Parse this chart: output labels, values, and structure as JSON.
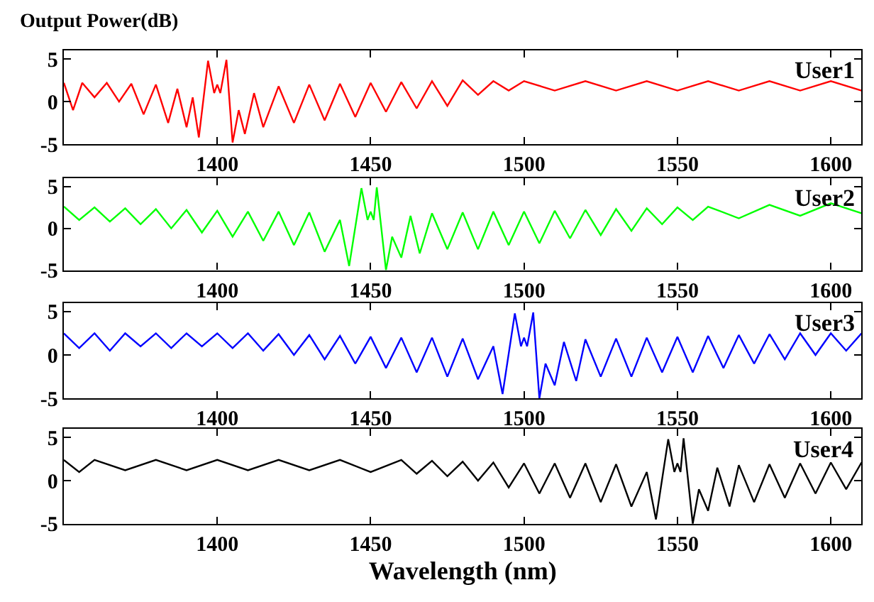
{
  "chart_data": [
    {
      "type": "line",
      "title": "Output Power(dB)",
      "annotations": [
        "User1"
      ],
      "xlim": [
        1350,
        1610
      ],
      "xticks": [
        1400,
        1450,
        1500,
        1550,
        1600
      ],
      "ylim": [
        -5,
        6
      ],
      "yticks": [
        -5,
        0,
        5
      ],
      "x": [
        1350,
        1353,
        1356,
        1360,
        1364,
        1368,
        1372,
        1376,
        1380,
        1384,
        1387,
        1390,
        1392,
        1394,
        1397,
        1399,
        1400,
        1401,
        1403,
        1405,
        1407,
        1409,
        1412,
        1415,
        1420,
        1425,
        1430,
        1435,
        1440,
        1445,
        1450,
        1455,
        1460,
        1465,
        1470,
        1475,
        1480,
        1485,
        1490,
        1495,
        1500,
        1510,
        1520,
        1530,
        1540,
        1550,
        1560,
        1570,
        1580,
        1590,
        1600,
        1610
      ],
      "series": [
        {
          "color": "#ff0000",
          "values": [
            2.2,
            -1.0,
            2.2,
            0.5,
            2.2,
            0.0,
            2.1,
            -1.5,
            2.0,
            -2.5,
            1.5,
            -3.0,
            0.5,
            -4.2,
            4.8,
            1.0,
            2.0,
            1.0,
            4.9,
            -4.8,
            -1.0,
            -3.8,
            1.0,
            -3.0,
            1.8,
            -2.5,
            2.0,
            -2.2,
            2.1,
            -1.8,
            2.2,
            -1.2,
            2.3,
            -0.8,
            2.4,
            -0.5,
            2.5,
            0.8,
            2.4,
            1.3,
            2.4,
            1.3,
            2.4,
            1.3,
            2.4,
            1.3,
            2.4,
            1.3,
            2.4,
            1.3,
            2.4,
            1.3
          ]
        }
      ]
    },
    {
      "type": "line",
      "annotations": [
        "User2"
      ],
      "xlim": [
        1350,
        1610
      ],
      "xticks": [
        1400,
        1450,
        1500,
        1550,
        1600
      ],
      "ylim": [
        -5,
        6
      ],
      "yticks": [
        -5,
        0,
        5
      ],
      "x": [
        1350,
        1355,
        1360,
        1365,
        1370,
        1375,
        1380,
        1385,
        1390,
        1395,
        1400,
        1405,
        1410,
        1415,
        1420,
        1425,
        1430,
        1435,
        1440,
        1443,
        1447,
        1449,
        1450,
        1451,
        1452,
        1455,
        1457,
        1460,
        1463,
        1466,
        1470,
        1475,
        1480,
        1485,
        1490,
        1495,
        1500,
        1505,
        1510,
        1515,
        1520,
        1525,
        1530,
        1535,
        1540,
        1545,
        1550,
        1555,
        1560,
        1570,
        1580,
        1590,
        1600,
        1610
      ],
      "series": [
        {
          "color": "#00ff00",
          "values": [
            2.6,
            1.0,
            2.5,
            0.8,
            2.4,
            0.5,
            2.3,
            0.0,
            2.2,
            -0.5,
            2.1,
            -1.0,
            2.0,
            -1.5,
            2.0,
            -2.0,
            1.9,
            -2.8,
            1.0,
            -4.5,
            4.8,
            1.0,
            2.0,
            1.0,
            4.9,
            -5.0,
            -1.0,
            -3.5,
            1.5,
            -3.0,
            1.8,
            -2.5,
            1.9,
            -2.5,
            2.0,
            -2.0,
            2.0,
            -1.8,
            2.1,
            -1.2,
            2.2,
            -0.8,
            2.3,
            -0.3,
            2.4,
            0.5,
            2.5,
            1.0,
            2.6,
            1.2,
            2.8,
            1.5,
            3.0,
            1.8
          ]
        }
      ]
    },
    {
      "type": "line",
      "annotations": [
        "User3"
      ],
      "xlim": [
        1350,
        1610
      ],
      "xticks": [
        1400,
        1450,
        1500,
        1550,
        1600
      ],
      "ylim": [
        -5,
        6
      ],
      "yticks": [
        -5,
        0,
        5
      ],
      "x": [
        1350,
        1355,
        1360,
        1365,
        1370,
        1375,
        1380,
        1385,
        1390,
        1395,
        1400,
        1405,
        1410,
        1415,
        1420,
        1425,
        1430,
        1435,
        1440,
        1445,
        1450,
        1455,
        1460,
        1465,
        1470,
        1475,
        1480,
        1485,
        1490,
        1493,
        1497,
        1499,
        1500,
        1501,
        1503,
        1505,
        1507,
        1510,
        1513,
        1517,
        1520,
        1525,
        1530,
        1535,
        1540,
        1545,
        1550,
        1555,
        1560,
        1565,
        1570,
        1575,
        1580,
        1585,
        1590,
        1595,
        1600,
        1605,
        1610
      ],
      "series": [
        {
          "color": "#0000ff",
          "values": [
            2.5,
            0.8,
            2.5,
            0.5,
            2.5,
            1.0,
            2.5,
            0.8,
            2.5,
            1.0,
            2.5,
            0.8,
            2.5,
            0.5,
            2.4,
            0.0,
            2.3,
            -0.5,
            2.2,
            -1.0,
            2.1,
            -1.5,
            2.0,
            -2.0,
            2.0,
            -2.5,
            1.9,
            -2.8,
            1.0,
            -4.5,
            4.8,
            1.0,
            2.0,
            1.0,
            4.9,
            -5.0,
            -1.0,
            -3.5,
            1.5,
            -3.0,
            1.8,
            -2.5,
            1.9,
            -2.5,
            2.0,
            -2.0,
            2.1,
            -2.0,
            2.2,
            -1.5,
            2.3,
            -1.0,
            2.4,
            -0.5,
            2.5,
            0.0,
            2.5,
            0.5,
            2.5
          ]
        }
      ]
    },
    {
      "type": "line",
      "annotations": [
        "User4"
      ],
      "xlabel": "Wavelength (nm)",
      "xlim": [
        1350,
        1610
      ],
      "xticks": [
        1400,
        1450,
        1500,
        1550,
        1600
      ],
      "ylim": [
        -5,
        6
      ],
      "yticks": [
        -5,
        0,
        5
      ],
      "x": [
        1350,
        1355,
        1360,
        1370,
        1380,
        1390,
        1400,
        1410,
        1420,
        1430,
        1440,
        1450,
        1460,
        1465,
        1470,
        1475,
        1480,
        1485,
        1490,
        1495,
        1500,
        1505,
        1510,
        1515,
        1520,
        1525,
        1530,
        1535,
        1540,
        1543,
        1547,
        1549,
        1550,
        1551,
        1552,
        1555,
        1557,
        1560,
        1563,
        1567,
        1570,
        1575,
        1580,
        1585,
        1590,
        1595,
        1600,
        1605,
        1610
      ],
      "series": [
        {
          "color": "#000000",
          "values": [
            2.4,
            1.0,
            2.4,
            1.2,
            2.4,
            1.2,
            2.4,
            1.2,
            2.4,
            1.2,
            2.4,
            1.0,
            2.4,
            0.8,
            2.3,
            0.5,
            2.2,
            0.0,
            2.1,
            -0.8,
            2.0,
            -1.5,
            2.0,
            -2.0,
            2.0,
            -2.5,
            1.9,
            -3.0,
            1.0,
            -4.5,
            4.8,
            1.0,
            2.0,
            1.0,
            4.9,
            -5.0,
            -1.0,
            -3.5,
            1.5,
            -3.0,
            1.8,
            -2.5,
            1.9,
            -2.0,
            2.0,
            -1.5,
            2.1,
            -1.0,
            2.1
          ]
        }
      ]
    }
  ]
}
